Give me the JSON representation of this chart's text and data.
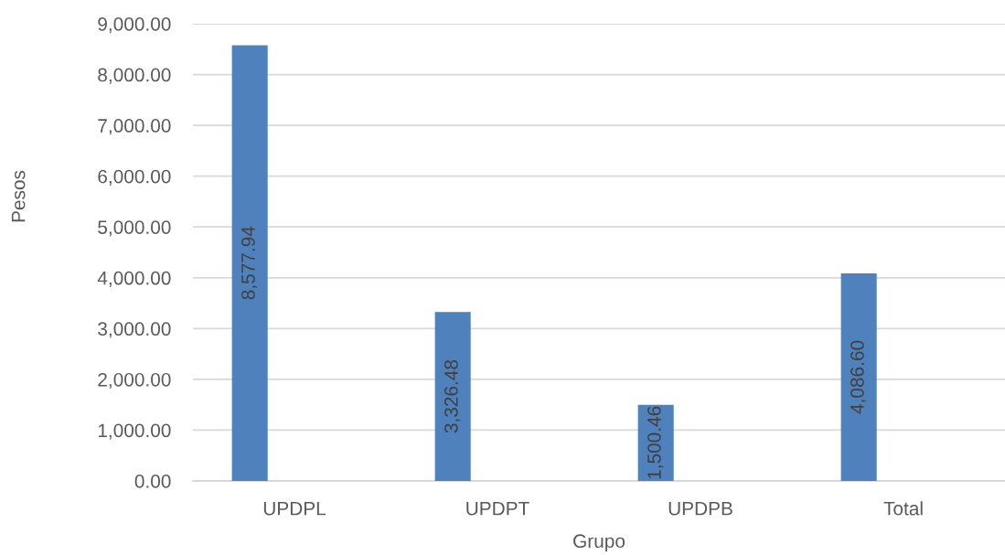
{
  "chart_data": {
    "type": "bar",
    "xlabel": "Grupo",
    "ylabel": "Pesos",
    "categories": [
      "UPDPL",
      "UPDPT",
      "UPDPB",
      "Total"
    ],
    "values": [
      8577.94,
      3326.48,
      1500.46,
      4086.6
    ],
    "value_labels": [
      "8,577.94",
      "3,326.48",
      "1,500.46",
      "4,086.60"
    ],
    "color": "#4f81bd",
    "ylim": [
      0,
      9000
    ],
    "yticks": [
      {
        "value": 0,
        "label": "0.00"
      },
      {
        "value": 1000,
        "label": "1,000.00"
      },
      {
        "value": 2000,
        "label": "2,000.00"
      },
      {
        "value": 3000,
        "label": "3,000.00"
      },
      {
        "value": 4000,
        "label": "4,000.00"
      },
      {
        "value": 5000,
        "label": "5,000.00"
      },
      {
        "value": 6000,
        "label": "6,000.00"
      },
      {
        "value": 7000,
        "label": "7,000.00"
      },
      {
        "value": 8000,
        "label": "8,000.00"
      },
      {
        "value": 9000,
        "label": "9,000.00"
      }
    ],
    "grid": "y"
  }
}
